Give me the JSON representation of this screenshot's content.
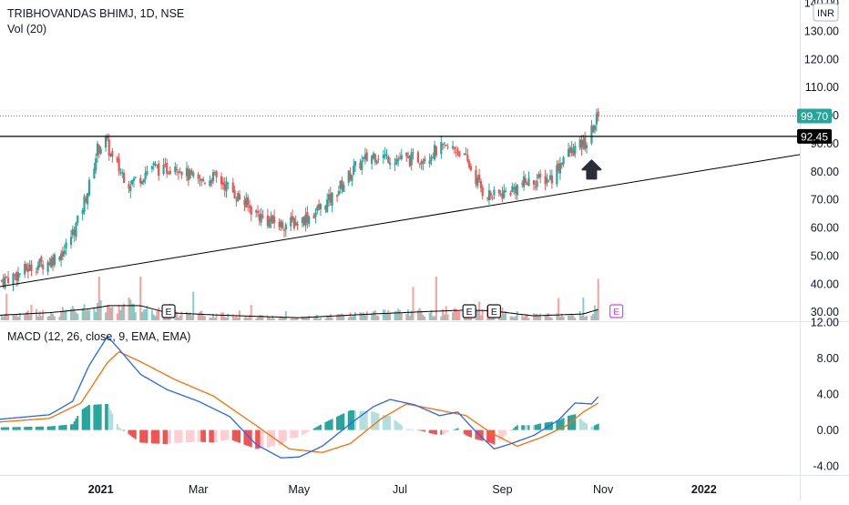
{
  "header": {
    "title": "TRIBHOVANDAS BHIMJ, 1D, NSE",
    "volume_label": "Vol (20)",
    "macd_label": "MACD (12, 26, close, 9, EMA, EMA)",
    "currency": "INR"
  },
  "colors": {
    "up": "#26a69a",
    "down": "#ef5350",
    "macd_line": "#2962ff",
    "signal_line": "#ff6d00",
    "axis_text": "#131722",
    "earnings_future": "#e040fb",
    "price_badge": "#26a69a",
    "level_badge": "#000000"
  },
  "chart_data": [
    {
      "type": "candlestick",
      "price_axis": {
        "range": [
          27,
          141
        ],
        "ticks": [
          "140.00",
          "130.00",
          "120.00",
          "110.00",
          "100.00",
          "90.00",
          "80.00",
          "70.00",
          "60.00",
          "50.00",
          "40.00",
          "30.00"
        ]
      },
      "time_axis": {
        "ticks": [
          "2021",
          "Mar",
          "May",
          "Jul",
          "Sep",
          "Nov",
          "2022"
        ]
      },
      "last_price": "99.70",
      "resistance_level": "92.45",
      "trendline": {
        "from": [
          "2020-11-01",
          39
        ],
        "to": [
          "2022-02-28",
          86
        ]
      },
      "earnings_markers": [
        {
          "date": "2021-02-11",
          "label": "E",
          "future": false
        },
        {
          "date": "2021-08-12",
          "label": "E",
          "future": false
        },
        {
          "date": "2021-08-27",
          "label": "E",
          "future": false
        },
        {
          "date": "2021-11-09",
          "label": "E",
          "future": true
        }
      ],
      "annotation": {
        "type": "arrow-up",
        "date": "2021-10-25",
        "price": 80
      },
      "price_path": [
        [
          "2020-11-01",
          41
        ],
        [
          "2020-11-10",
          43
        ],
        [
          "2020-11-20",
          46
        ],
        [
          "2020-12-01",
          48
        ],
        [
          "2020-12-10",
          52
        ],
        [
          "2020-12-18",
          62
        ],
        [
          "2020-12-25",
          75
        ],
        [
          "2020-12-30",
          88
        ],
        [
          "2021-01-04",
          91
        ],
        [
          "2021-01-08",
          84
        ],
        [
          "2021-01-13",
          80
        ],
        [
          "2021-01-18",
          76
        ],
        [
          "2021-01-25",
          78
        ],
        [
          "2021-02-01",
          82
        ],
        [
          "2021-02-08",
          80
        ],
        [
          "2021-02-15",
          83
        ],
        [
          "2021-02-22",
          79
        ],
        [
          "2021-03-01",
          76
        ],
        [
          "2021-03-10",
          78
        ],
        [
          "2021-03-18",
          75
        ],
        [
          "2021-03-25",
          71
        ],
        [
          "2021-04-01",
          67
        ],
        [
          "2021-04-10",
          63
        ],
        [
          "2021-04-20",
          61
        ],
        [
          "2021-04-30",
          62
        ],
        [
          "2021-05-10",
          65
        ],
        [
          "2021-05-20",
          70
        ],
        [
          "2021-05-28",
          76
        ],
        [
          "2021-06-05",
          82
        ],
        [
          "2021-06-15",
          86
        ],
        [
          "2021-06-25",
          85
        ],
        [
          "2021-07-05",
          84
        ],
        [
          "2021-07-15",
          85
        ],
        [
          "2021-07-25",
          88
        ],
        [
          "2021-08-05",
          88
        ],
        [
          "2021-08-12",
          82
        ],
        [
          "2021-08-20",
          73
        ],
        [
          "2021-08-27",
          71
        ],
        [
          "2021-09-05",
          73
        ],
        [
          "2021-09-15",
          76
        ],
        [
          "2021-09-25",
          77
        ],
        [
          "2021-10-01",
          78
        ],
        [
          "2021-10-08",
          85
        ],
        [
          "2021-10-15",
          88
        ],
        [
          "2021-10-22",
          90
        ],
        [
          "2021-10-29",
          99.7
        ]
      ],
      "volume_avg_path": [
        [
          "2020-11-01",
          0.8
        ],
        [
          "2020-12-01",
          1.2
        ],
        [
          "2020-12-25",
          1.8
        ],
        [
          "2021-01-06",
          2.3
        ],
        [
          "2021-01-25",
          2.3
        ],
        [
          "2021-02-10",
          1.2
        ],
        [
          "2021-03-15",
          0.8
        ],
        [
          "2021-05-01",
          0.4
        ],
        [
          "2021-06-15",
          1.0
        ],
        [
          "2021-07-20",
          1.4
        ],
        [
          "2021-08-10",
          1.6
        ],
        [
          "2021-08-25",
          1.5
        ],
        [
          "2021-09-20",
          0.7
        ],
        [
          "2021-10-20",
          1.0
        ],
        [
          "2021-10-29",
          1.7
        ]
      ]
    },
    {
      "type": "macd",
      "axis": {
        "range": [
          -5,
          12
        ],
        "ticks": [
          "12.00",
          "8.00",
          "4.00",
          "0.00",
          "-4.00"
        ]
      },
      "macd": [
        [
          "2020-11-01",
          1.2
        ],
        [
          "2020-12-01",
          1.7
        ],
        [
          "2020-12-15",
          3.2
        ],
        [
          "2020-12-25",
          7.2
        ],
        [
          "2021-01-05",
          10.4
        ],
        [
          "2021-01-12",
          9.0
        ],
        [
          "2021-01-25",
          6.2
        ],
        [
          "2021-02-10",
          4.5
        ],
        [
          "2021-03-01",
          3.2
        ],
        [
          "2021-03-20",
          1.5
        ],
        [
          "2021-04-05",
          -1.6
        ],
        [
          "2021-04-20",
          -3.1
        ],
        [
          "2021-05-01",
          -3.0
        ],
        [
          "2021-05-15",
          -1.8
        ],
        [
          "2021-06-01",
          0.7
        ],
        [
          "2021-06-15",
          2.6
        ],
        [
          "2021-06-25",
          3.4
        ],
        [
          "2021-07-10",
          2.8
        ],
        [
          "2021-07-25",
          1.6
        ],
        [
          "2021-08-05",
          2.0
        ],
        [
          "2021-08-15",
          0.0
        ],
        [
          "2021-08-27",
          -2.1
        ],
        [
          "2021-09-05",
          -1.6
        ],
        [
          "2021-09-20",
          -0.6
        ],
        [
          "2021-10-05",
          1.1
        ],
        [
          "2021-10-15",
          3.0
        ],
        [
          "2021-10-25",
          2.9
        ],
        [
          "2021-10-29",
          3.7
        ]
      ],
      "signal": [
        [
          "2020-11-01",
          0.9
        ],
        [
          "2020-12-01",
          1.3
        ],
        [
          "2020-12-20",
          3.0
        ],
        [
          "2021-01-05",
          7.5
        ],
        [
          "2021-01-12",
          8.7
        ],
        [
          "2021-01-25",
          7.6
        ],
        [
          "2021-02-15",
          5.6
        ],
        [
          "2021-03-10",
          3.8
        ],
        [
          "2021-04-05",
          0.5
        ],
        [
          "2021-04-25",
          -2.1
        ],
        [
          "2021-05-15",
          -2.5
        ],
        [
          "2021-06-01",
          -1.5
        ],
        [
          "2021-06-20",
          1.3
        ],
        [
          "2021-07-05",
          2.9
        ],
        [
          "2021-07-25",
          2.2
        ],
        [
          "2021-08-10",
          1.6
        ],
        [
          "2021-08-25",
          -0.3
        ],
        [
          "2021-09-10",
          -1.8
        ],
        [
          "2021-09-25",
          -0.8
        ],
        [
          "2021-10-10",
          0.5
        ],
        [
          "2021-10-20",
          2.0
        ],
        [
          "2021-10-29",
          3.0
        ]
      ]
    }
  ]
}
